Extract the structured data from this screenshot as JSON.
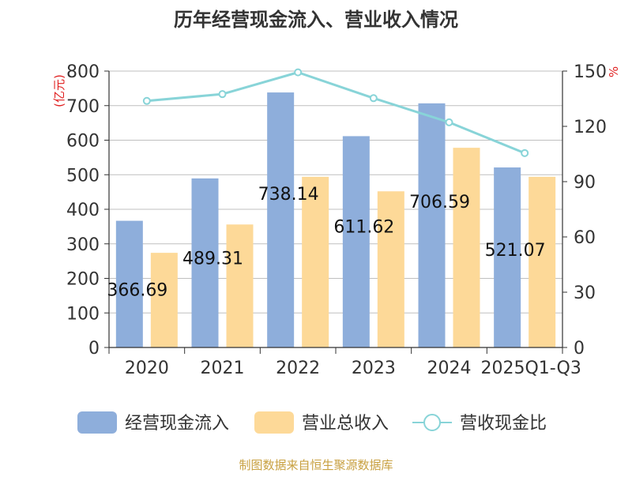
{
  "chart_data": {
    "type": "bar",
    "title": "历年经营现金流入、营业收入情况",
    "left_axis_unit": "(亿元)",
    "right_axis_unit": "%",
    "categories": [
      "2020",
      "2021",
      "2022",
      "2023",
      "2024",
      "2025Q1-Q3"
    ],
    "left_ylim": [
      0,
      800
    ],
    "left_ticks": [
      "0",
      "100",
      "200",
      "300",
      "400",
      "500",
      "600",
      "700",
      "800"
    ],
    "right_ylim": [
      0,
      150
    ],
    "right_ticks": [
      "0",
      "30",
      "60",
      "90",
      "120",
      "150"
    ],
    "grid": true,
    "legend_position": "bottom",
    "series": [
      {
        "name": "经营现金流入",
        "kind": "bar",
        "axis": "left",
        "color": "#8eaedb",
        "values": [
          366.69,
          489.31,
          738.14,
          611.62,
          706.59,
          521.07
        ],
        "labels": [
          "366.69",
          "489.31",
          "738.14",
          "611.62",
          "706.59",
          "521.07"
        ]
      },
      {
        "name": "营业总收入",
        "kind": "bar",
        "axis": "left",
        "color": "#fdd998",
        "values": [
          274,
          356,
          494,
          452,
          578,
          494
        ]
      },
      {
        "name": "营收现金比",
        "kind": "line",
        "axis": "right",
        "color": "#88d4d8",
        "values": [
          133.8,
          137.5,
          149.3,
          135.3,
          122.2,
          105.5
        ]
      }
    ]
  },
  "footer": {
    "source": "制图数据来自恒生聚源数据库"
  }
}
